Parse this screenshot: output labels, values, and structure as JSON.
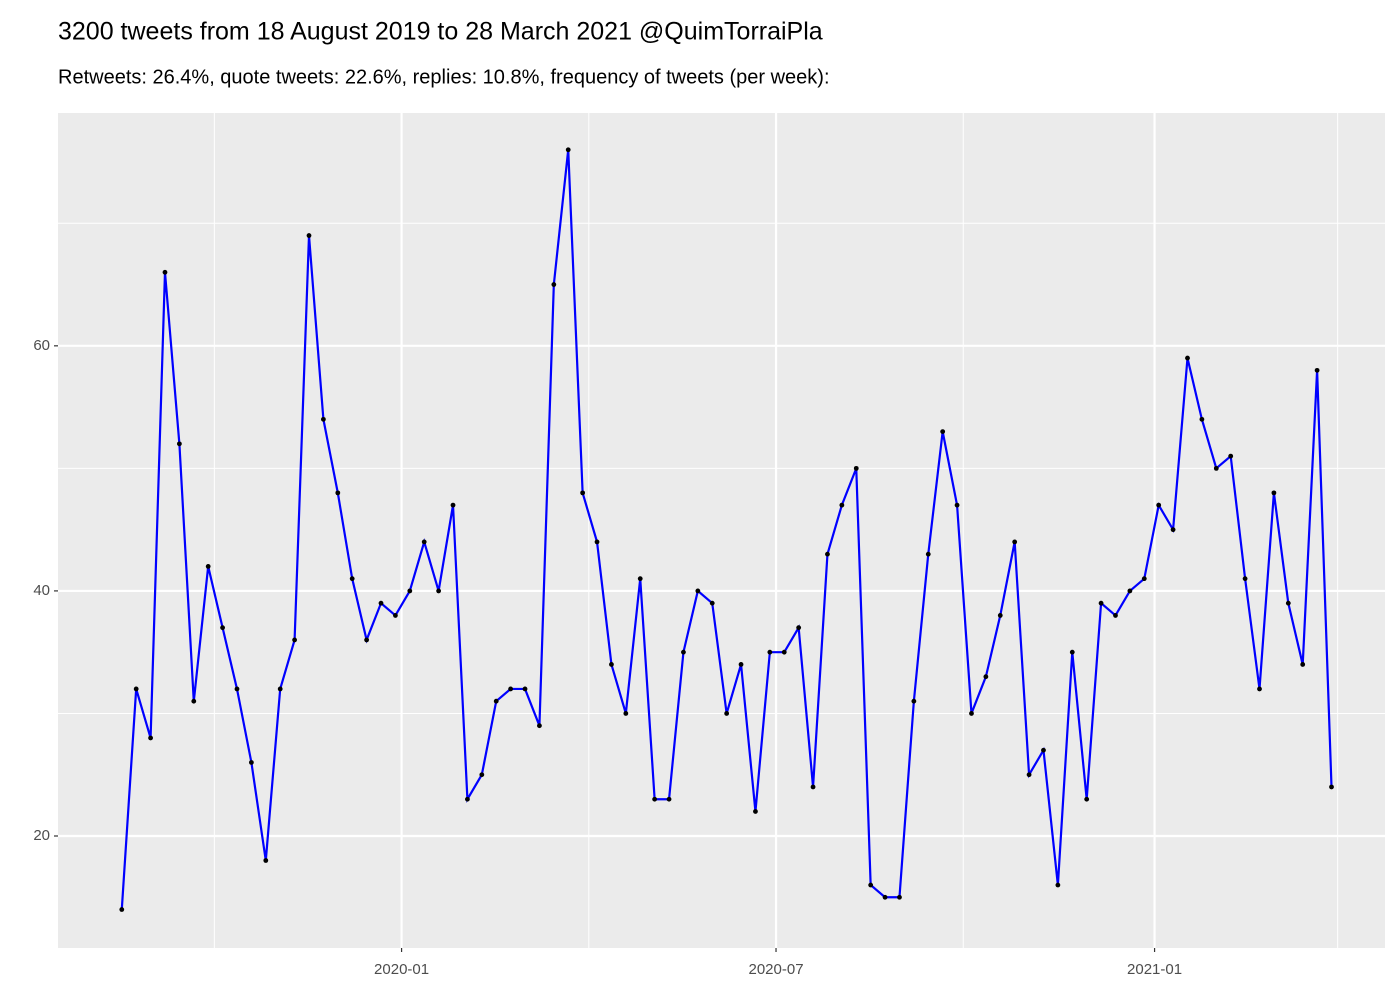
{
  "chart_data": {
    "type": "line",
    "title": "3200 tweets from 18 August 2019 to 28 March 2021 @QuimTorraiPla",
    "subtitle": "Retweets: 26.4%, quote tweets: 22.6%, replies: 10.8%, frequency of tweets (per week):",
    "x": [
      "2019-08-18",
      "2019-08-25",
      "2019-09-01",
      "2019-09-08",
      "2019-09-15",
      "2019-09-22",
      "2019-09-29",
      "2019-10-06",
      "2019-10-13",
      "2019-10-20",
      "2019-10-27",
      "2019-11-03",
      "2019-11-10",
      "2019-11-17",
      "2019-11-24",
      "2019-12-01",
      "2019-12-08",
      "2019-12-15",
      "2019-12-22",
      "2019-12-29",
      "2020-01-05",
      "2020-01-12",
      "2020-01-19",
      "2020-01-26",
      "2020-02-02",
      "2020-02-09",
      "2020-02-16",
      "2020-02-23",
      "2020-03-01",
      "2020-03-08",
      "2020-03-15",
      "2020-03-22",
      "2020-03-29",
      "2020-04-05",
      "2020-04-12",
      "2020-04-19",
      "2020-04-26",
      "2020-05-03",
      "2020-05-10",
      "2020-05-17",
      "2020-05-24",
      "2020-05-31",
      "2020-06-07",
      "2020-06-14",
      "2020-06-21",
      "2020-06-28",
      "2020-07-05",
      "2020-07-12",
      "2020-07-19",
      "2020-07-26",
      "2020-08-02",
      "2020-08-09",
      "2020-08-16",
      "2020-08-23",
      "2020-08-30",
      "2020-09-06",
      "2020-09-13",
      "2020-09-20",
      "2020-09-27",
      "2020-10-04",
      "2020-10-11",
      "2020-10-18",
      "2020-10-25",
      "2020-11-01",
      "2020-11-08",
      "2020-11-15",
      "2020-11-22",
      "2020-11-29",
      "2020-12-06",
      "2020-12-13",
      "2020-12-20",
      "2020-12-27",
      "2021-01-03",
      "2021-01-10",
      "2021-01-17",
      "2021-01-24",
      "2021-01-31",
      "2021-02-07",
      "2021-02-14",
      "2021-02-21",
      "2021-02-28",
      "2021-03-07",
      "2021-03-14",
      "2021-03-21",
      "2021-03-28"
    ],
    "series": [
      {
        "color": "#0000ff",
        "point_color": "#000000",
        "values": [
          14,
          32,
          28,
          66,
          52,
          31,
          42,
          37,
          32,
          26,
          18,
          32,
          36,
          69,
          54,
          48,
          41,
          36,
          39,
          38,
          40,
          44,
          40,
          47,
          23,
          25,
          31,
          32,
          32,
          29,
          65,
          76,
          48,
          44,
          34,
          30,
          41,
          23,
          23,
          35,
          40,
          39,
          30,
          34,
          22,
          35,
          35,
          37,
          24,
          43,
          47,
          50,
          16,
          15,
          15,
          31,
          43,
          53,
          47,
          30,
          33,
          38,
          44,
          25,
          27,
          16,
          35,
          23,
          39,
          38,
          40,
          41,
          47,
          45,
          59,
          54,
          50,
          51,
          41,
          32,
          48,
          39,
          34,
          58,
          24
        ]
      }
    ],
    "xlim": [
      "2019-07-18",
      "2021-04-23"
    ],
    "xticks": [
      {
        "value": "2020-01-01",
        "label": "2020-01"
      },
      {
        "value": "2020-07-01",
        "label": "2020-07"
      },
      {
        "value": "2021-01-01",
        "label": "2021-01"
      }
    ],
    "ylim": [
      10.86,
      79
    ],
    "yticks": [
      20,
      40,
      60
    ],
    "grid": true
  }
}
